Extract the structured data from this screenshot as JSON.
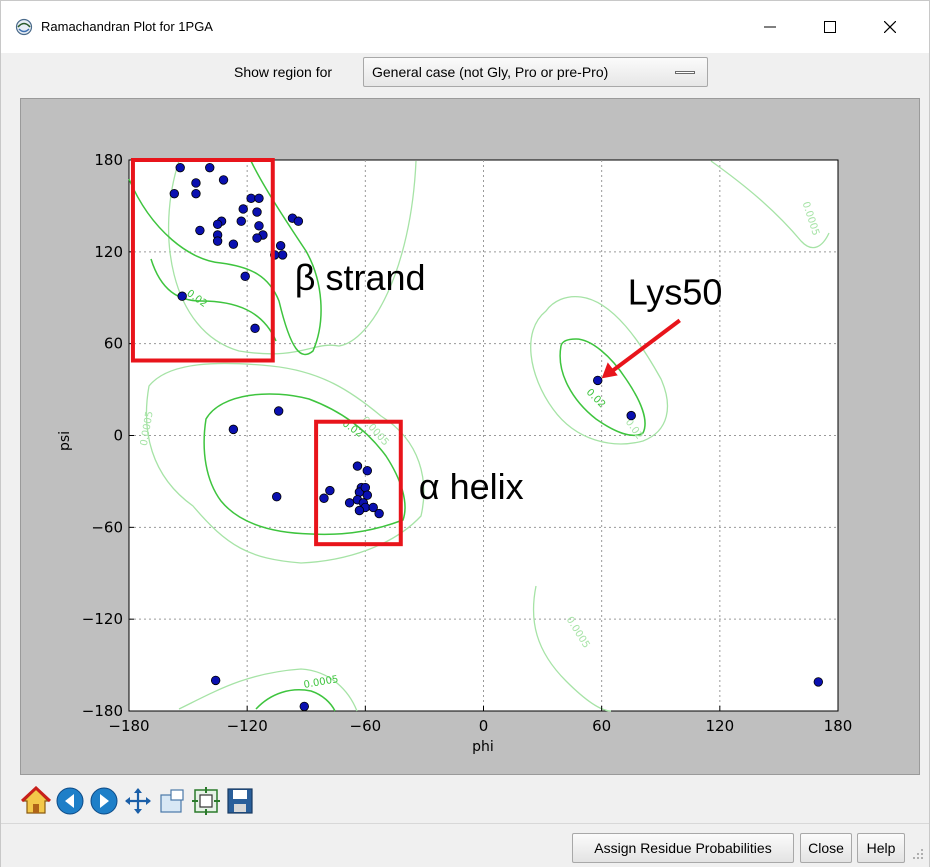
{
  "window": {
    "title": "Ramachandran Plot for 1PGA",
    "minimize_icon": "minimize-icon",
    "maximize_icon": "maximize-icon",
    "close_icon": "close-icon"
  },
  "region": {
    "label": "Show region for",
    "selected": "General case (not Gly, Pro or pre-Pro)"
  },
  "chart_data": {
    "type": "scatter",
    "title": "",
    "xlabel": "phi",
    "ylabel": "psi",
    "xlim": [
      -180,
      180
    ],
    "ylim": [
      -180,
      180
    ],
    "xticks": [
      "−180",
      "−120",
      "−60",
      "0",
      "60",
      "120",
      "180"
    ],
    "yticks": [
      "180",
      "120",
      "60",
      "0",
      "−60",
      "−120",
      "−180"
    ],
    "grid": true,
    "point_color": "#0a10b0",
    "contour_labels": [
      "0.0005",
      "0.02",
      "0.02",
      "0.0005",
      "0.02",
      "0.02",
      "0.0005",
      "0.0005",
      "0.0005",
      "0.02"
    ],
    "points": [
      {
        "phi": -154,
        "psi": 175
      },
      {
        "phi": -146,
        "psi": 165
      },
      {
        "phi": -139,
        "psi": 175
      },
      {
        "phi": -132,
        "psi": 167
      },
      {
        "phi": -157,
        "psi": 158
      },
      {
        "phi": -146,
        "psi": 158
      },
      {
        "phi": -122,
        "psi": 148
      },
      {
        "phi": -118,
        "psi": 155
      },
      {
        "phi": -114,
        "psi": 155
      },
      {
        "phi": -115,
        "psi": 146
      },
      {
        "phi": -133,
        "psi": 140
      },
      {
        "phi": -135,
        "psi": 138
      },
      {
        "phi": -123,
        "psi": 140
      },
      {
        "phi": -144,
        "psi": 134
      },
      {
        "phi": -135,
        "psi": 131
      },
      {
        "phi": -114,
        "psi": 137
      },
      {
        "phi": -112,
        "psi": 131
      },
      {
        "phi": -115,
        "psi": 129
      },
      {
        "phi": -135,
        "psi": 127
      },
      {
        "phi": -127,
        "psi": 125
      },
      {
        "phi": -97,
        "psi": 142
      },
      {
        "phi": -94,
        "psi": 140
      },
      {
        "phi": -103,
        "psi": 124
      },
      {
        "phi": -102,
        "psi": 118
      },
      {
        "phi": -106,
        "psi": 118
      },
      {
        "phi": -121,
        "psi": 104
      },
      {
        "phi": -153,
        "psi": 91
      },
      {
        "phi": -116,
        "psi": 70
      },
      {
        "phi": -104,
        "psi": 16
      },
      {
        "phi": -127,
        "psi": 4
      },
      {
        "phi": -105,
        "psi": -40
      },
      {
        "phi": -81,
        "psi": -41
      },
      {
        "phi": -78,
        "psi": -36
      },
      {
        "phi": -68,
        "psi": -44
      },
      {
        "phi": -64,
        "psi": -20
      },
      {
        "phi": -59,
        "psi": -23
      },
      {
        "phi": -62,
        "psi": -34
      },
      {
        "phi": -63,
        "psi": -37
      },
      {
        "phi": -60,
        "psi": -34
      },
      {
        "phi": -59,
        "psi": -39
      },
      {
        "phi": -64,
        "psi": -42
      },
      {
        "phi": -61,
        "psi": -44
      },
      {
        "phi": -60,
        "psi": -47
      },
      {
        "phi": -56,
        "psi": -47
      },
      {
        "phi": -63,
        "psi": -49
      },
      {
        "phi": -53,
        "psi": -51
      },
      {
        "phi": 58,
        "psi": 36
      },
      {
        "phi": 75,
        "psi": 13
      },
      {
        "phi": -136,
        "psi": -160
      },
      {
        "phi": -91,
        "psi": -177
      },
      {
        "phi": 170,
        "psi": -161
      }
    ],
    "annotations": [
      {
        "text": "β strand",
        "phi_range": [
          -178,
          -107
        ],
        "psi_range": [
          49,
          180
        ]
      },
      {
        "text": "α helix",
        "phi_range": [
          -85,
          -42
        ],
        "psi_range": [
          -71,
          9
        ]
      },
      {
        "text": "Lys50",
        "target_phi": 58,
        "target_psi": 36
      }
    ],
    "annotation_color": "#e8141b"
  },
  "nav_tools": [
    {
      "name": "home-icon",
      "tip": "home"
    },
    {
      "name": "back-icon",
      "tip": "back"
    },
    {
      "name": "forward-icon",
      "tip": "forward"
    },
    {
      "name": "pan-icon",
      "tip": "pan"
    },
    {
      "name": "zoom-icon",
      "tip": "zoom"
    },
    {
      "name": "configure-icon",
      "tip": "configure"
    },
    {
      "name": "save-icon",
      "tip": "save"
    }
  ],
  "buttons": {
    "assign": "Assign Residue Probabilities",
    "close": "Close",
    "help": "Help"
  }
}
